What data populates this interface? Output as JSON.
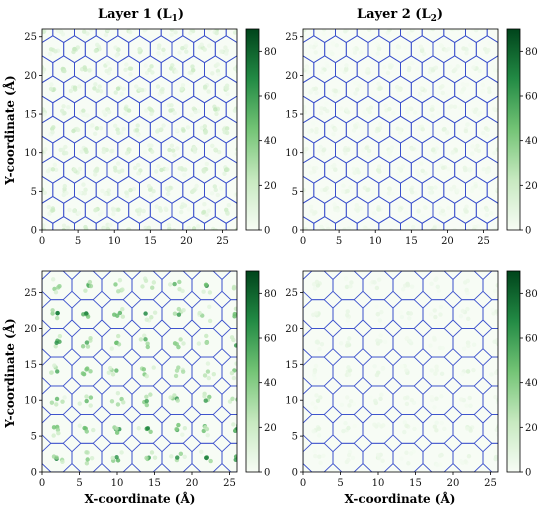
{
  "figure": {
    "column_titles": [
      "Layer 1 (L",
      "Layer 2 (L"
    ],
    "column_title_subscripts": [
      "1",
      "2"
    ],
    "x_axis_label": "X-coordinate (Å)",
    "y_axis_label": "Y-coordinate (Å)"
  },
  "colors": {
    "tessellation_edges": "#3a4fcc",
    "colormap": [
      "#f7fcf5",
      "#c7e9c0",
      "#74c476",
      "#238b45",
      "#00441b"
    ]
  },
  "chart_data": [
    {
      "type": "heatmap",
      "panel": "top-left",
      "layer": "L1",
      "title": "Layer 1 (L1)",
      "tessellation": "hexagonal",
      "cell_size": 3.0,
      "density_peak": 25,
      "xlim": [
        0,
        27
      ],
      "ylim": [
        0,
        26
      ],
      "xticks": [
        0,
        5,
        10,
        15,
        20,
        25
      ],
      "yticks": [
        0,
        5,
        10,
        15,
        20,
        25
      ],
      "colorbar": {
        "min": 0,
        "max": 90,
        "ticks": [
          0,
          20,
          40,
          60,
          80
        ]
      }
    },
    {
      "type": "heatmap",
      "panel": "top-right",
      "layer": "L2",
      "title": "Layer 2 (L2)",
      "tessellation": "hexagonal",
      "cell_size": 3.0,
      "density_peak": 10,
      "xlim": [
        0,
        27
      ],
      "ylim": [
        0,
        26
      ],
      "xticks": [
        0,
        5,
        10,
        15,
        20,
        25
      ],
      "yticks": [
        0,
        5,
        10,
        15,
        20,
        25
      ],
      "colorbar": {
        "min": 0,
        "max": 90,
        "ticks": [
          0,
          20,
          40,
          60,
          80
        ]
      }
    },
    {
      "type": "heatmap",
      "panel": "bottom-left",
      "layer": "L1",
      "tessellation": "octagon-square",
      "cell_size": 4.0,
      "density_peak": 75,
      "xlim": [
        0,
        26
      ],
      "ylim": [
        0,
        28
      ],
      "xticks": [
        0,
        5,
        10,
        15,
        20,
        25
      ],
      "yticks": [
        0,
        5,
        10,
        15,
        20,
        25
      ],
      "colorbar": {
        "min": 0,
        "max": 90,
        "ticks": [
          0,
          20,
          40,
          60,
          80
        ]
      }
    },
    {
      "type": "heatmap",
      "panel": "bottom-right",
      "layer": "L2",
      "tessellation": "octagon-square",
      "cell_size": 4.0,
      "density_peak": 12,
      "xlim": [
        0,
        26
      ],
      "ylim": [
        0,
        28
      ],
      "xticks": [
        0,
        5,
        10,
        15,
        20,
        25
      ],
      "yticks": [
        0,
        5,
        10,
        15,
        20,
        25
      ],
      "colorbar": {
        "min": 0,
        "max": 90,
        "ticks": [
          0,
          20,
          40,
          60,
          80
        ]
      }
    }
  ]
}
